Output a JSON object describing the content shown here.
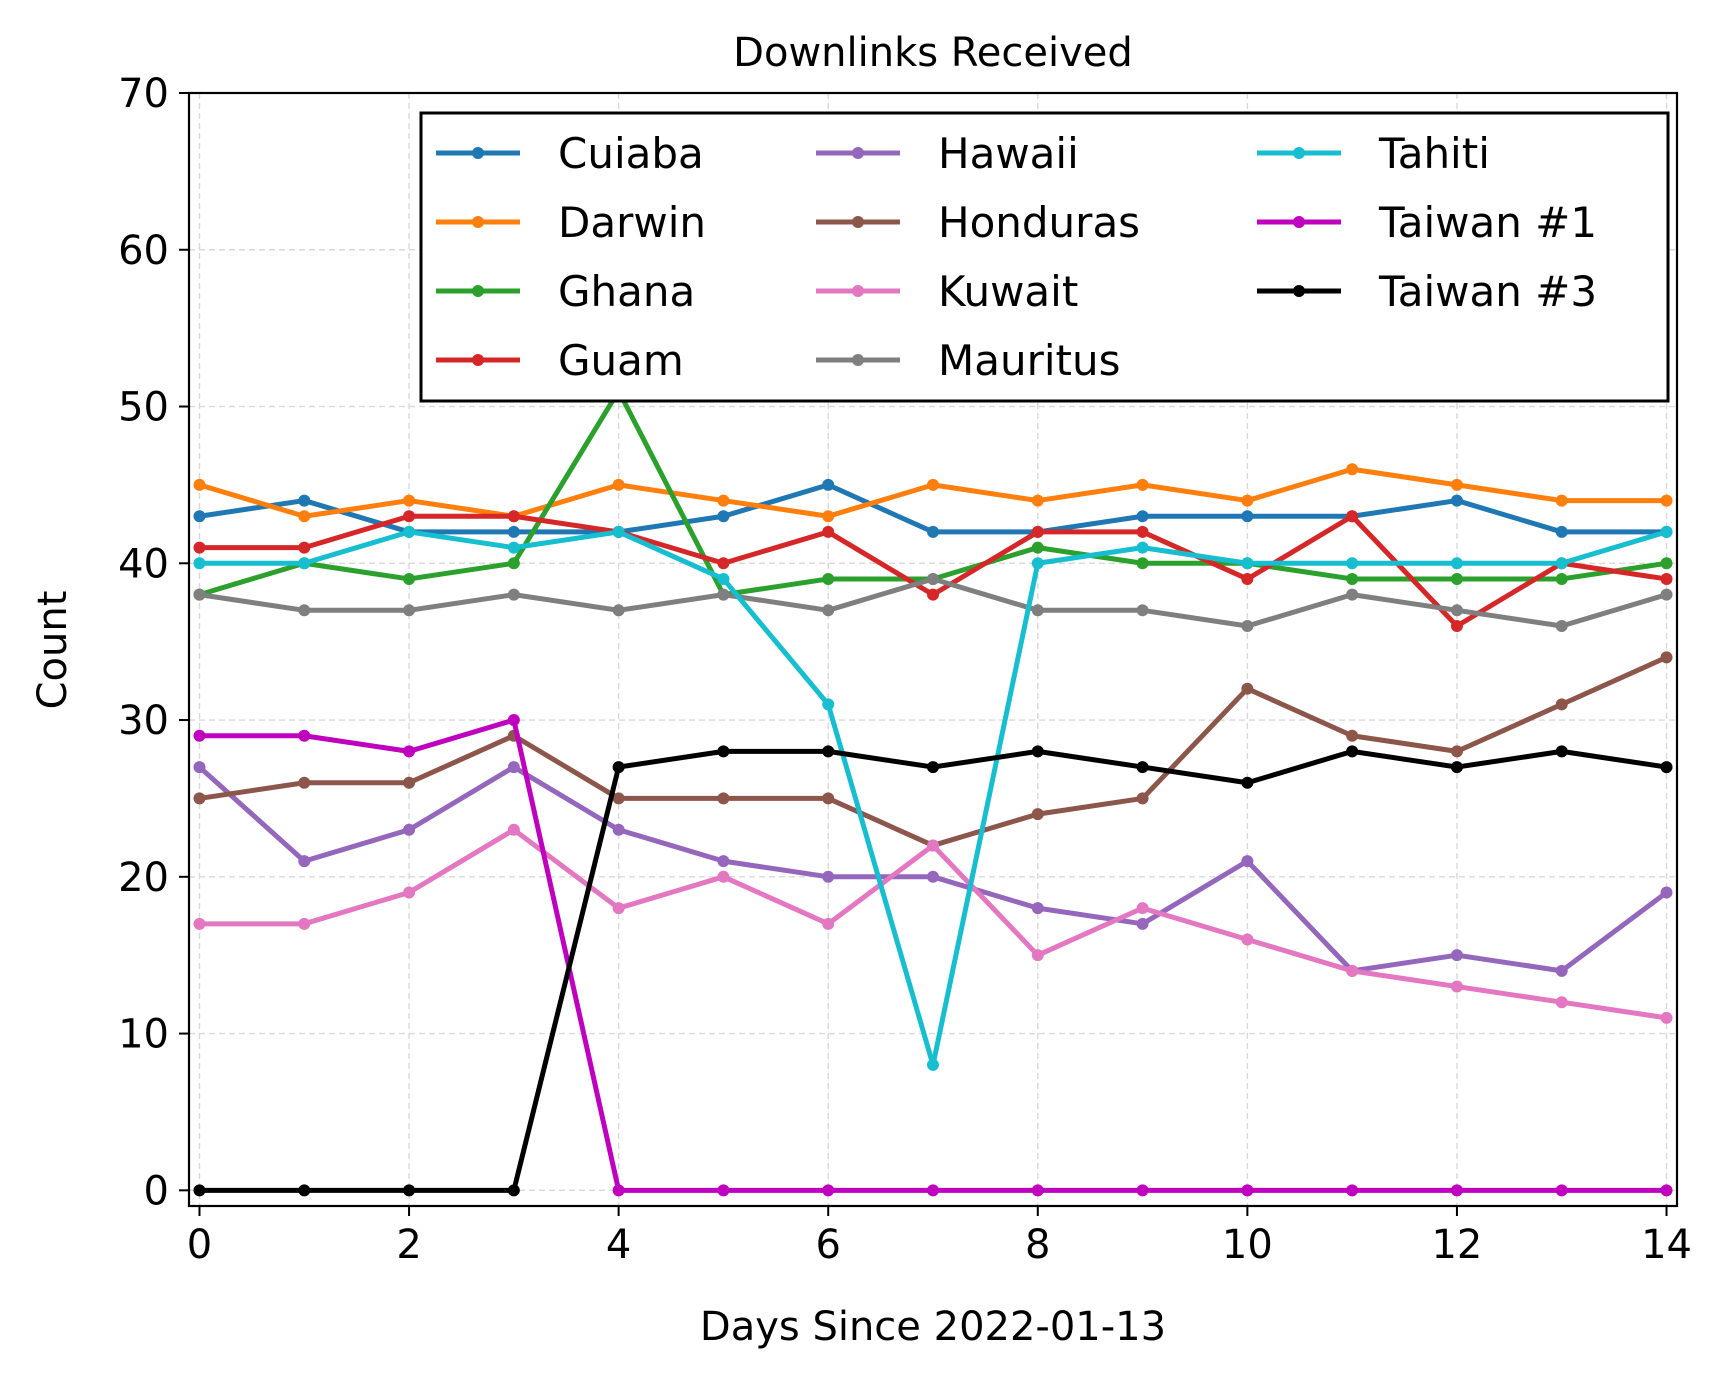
{
  "chart_data": {
    "type": "line",
    "title": "Downlinks Received",
    "xlabel": "Days Since 2022-01-13",
    "ylabel": "Count",
    "xlim": [
      -0.1,
      14.1
    ],
    "ylim": [
      -1,
      70
    ],
    "xticks": [
      0,
      2,
      4,
      6,
      8,
      10,
      12,
      14
    ],
    "yticks": [
      0,
      10,
      20,
      30,
      40,
      50,
      60,
      70
    ],
    "grid": true,
    "legend_placement": "top-right",
    "legend_columns": 3,
    "x": [
      0,
      1,
      2,
      3,
      4,
      5,
      6,
      7,
      8,
      9,
      10,
      11,
      12,
      13,
      14
    ],
    "series": [
      {
        "name": "Cuiaba",
        "color": "#1f77b4",
        "values": [
          43,
          44,
          42,
          42,
          42,
          43,
          45,
          42,
          42,
          43,
          43,
          43,
          44,
          42,
          42
        ]
      },
      {
        "name": "Darwin",
        "color": "#ff7f0e",
        "values": [
          45,
          43,
          44,
          43,
          45,
          44,
          43,
          45,
          44,
          45,
          44,
          46,
          45,
          44,
          44
        ]
      },
      {
        "name": "Ghana",
        "color": "#2ca02c",
        "values": [
          38,
          40,
          39,
          40,
          51,
          38,
          39,
          39,
          41,
          40,
          40,
          39,
          39,
          39,
          40
        ]
      },
      {
        "name": "Guam",
        "color": "#d62728",
        "values": [
          41,
          41,
          43,
          43,
          42,
          40,
          42,
          38,
          42,
          42,
          39,
          43,
          36,
          40,
          39
        ]
      },
      {
        "name": "Hawaii",
        "color": "#9467bd",
        "values": [
          27,
          21,
          23,
          27,
          23,
          21,
          20,
          20,
          18,
          17,
          21,
          14,
          15,
          14,
          19
        ]
      },
      {
        "name": "Honduras",
        "color": "#8c564b",
        "values": [
          25,
          26,
          26,
          29,
          25,
          25,
          25,
          22,
          24,
          25,
          32,
          29,
          28,
          31,
          34
        ]
      },
      {
        "name": "Kuwait",
        "color": "#e377c2",
        "values": [
          17,
          17,
          19,
          23,
          18,
          20,
          17,
          22,
          15,
          18,
          16,
          14,
          13,
          12,
          11
        ]
      },
      {
        "name": "Mauritus",
        "color": "#7f7f7f",
        "values": [
          38,
          37,
          37,
          38,
          37,
          38,
          37,
          39,
          37,
          37,
          36,
          38,
          37,
          36,
          38
        ]
      },
      {
        "name": "Tahiti",
        "color": "#17becf",
        "values": [
          40,
          40,
          42,
          41,
          42,
          39,
          31,
          8,
          40,
          41,
          40,
          40,
          40,
          40,
          42
        ]
      },
      {
        "name": "Taiwan #1",
        "color": "#bf00bf",
        "values": [
          29,
          29,
          28,
          30,
          0,
          0,
          0,
          0,
          0,
          0,
          0,
          0,
          0,
          0,
          0
        ]
      },
      {
        "name": "Taiwan #3",
        "color": "#000000",
        "values": [
          0,
          0,
          0,
          0,
          27,
          28,
          28,
          27,
          28,
          27,
          26,
          28,
          27,
          28,
          27
        ]
      }
    ]
  }
}
